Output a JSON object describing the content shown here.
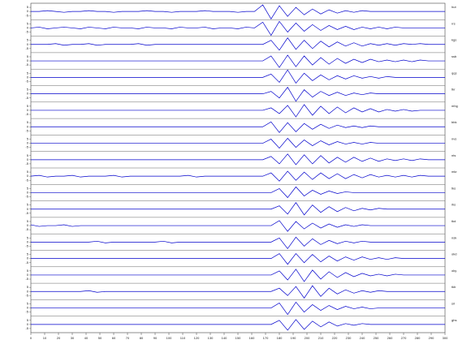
{
  "chart_data": {
    "type": "seismogram",
    "x": [
      0,
      6,
      12,
      18,
      24,
      30,
      36,
      42,
      48,
      54,
      60,
      66,
      72,
      78,
      84,
      90,
      96,
      102,
      108,
      114,
      120,
      126,
      132,
      138,
      144,
      150,
      156,
      162,
      168,
      174,
      180,
      186,
      192,
      198,
      204,
      210,
      216,
      222,
      228,
      234,
      240,
      246,
      252,
      258,
      264,
      270,
      276,
      282,
      288,
      294,
      300
    ],
    "xlim": [
      0,
      300
    ],
    "xticks": [
      0,
      10,
      20,
      30,
      40,
      50,
      60,
      70,
      80,
      90,
      100,
      110,
      120,
      130,
      140,
      150,
      160,
      170,
      180,
      190,
      200,
      210,
      220,
      230,
      240,
      250,
      260,
      270,
      280,
      290,
      300
    ],
    "ylim": [
      -10,
      10
    ],
    "yticks": [
      -5,
      0,
      5
    ],
    "series": [
      {
        "name": "hut",
        "color": "#0000cc",
        "values": [
          0,
          0,
          1,
          0,
          -1,
          0,
          0,
          1,
          0,
          0,
          -1,
          0,
          0,
          0,
          1,
          0,
          0,
          -1,
          0,
          0,
          0,
          1,
          0,
          0,
          0,
          -1,
          0,
          0,
          8,
          -9,
          7,
          -6,
          5,
          -4,
          3,
          -3,
          2,
          -2,
          1,
          -1,
          1,
          0,
          0,
          0,
          0,
          0,
          0,
          0,
          0,
          0,
          0
        ]
      },
      {
        "name": "rrs",
        "color": "#0000cc",
        "values": [
          0,
          1,
          -1,
          0,
          1,
          0,
          -1,
          1,
          0,
          -1,
          1,
          0,
          0,
          -1,
          1,
          0,
          0,
          -1,
          1,
          0,
          0,
          1,
          -1,
          0,
          0,
          -1,
          1,
          0,
          7,
          -9,
          8,
          -5,
          6,
          -4,
          4,
          -3,
          3,
          -2,
          2,
          -2,
          1,
          -1,
          1,
          -1,
          1,
          0,
          0,
          0,
          0,
          0,
          0
        ]
      },
      {
        "name": "kgs",
        "color": "#0000cc",
        "values": [
          0,
          0,
          0,
          1,
          -1,
          0,
          0,
          1,
          -1,
          0,
          0,
          0,
          0,
          1,
          -1,
          0,
          0,
          0,
          0,
          0,
          0,
          0,
          0,
          0,
          0,
          0,
          0,
          0,
          0,
          5,
          -7,
          8,
          -6,
          5,
          -5,
          4,
          -3,
          3,
          -2,
          2,
          -2,
          1,
          -1,
          1,
          -1,
          1,
          0,
          1,
          0,
          0,
          0
        ]
      },
      {
        "name": "ssb",
        "color": "#0000cc",
        "values": [
          0,
          0,
          0,
          0,
          0,
          0,
          0,
          0,
          0,
          0,
          0,
          0,
          0,
          0,
          0,
          0,
          0,
          0,
          0,
          0,
          0,
          0,
          0,
          0,
          0,
          0,
          0,
          0,
          0,
          6,
          -8,
          7,
          -7,
          6,
          -5,
          4,
          -4,
          3,
          -3,
          2,
          -2,
          2,
          -1,
          1,
          -1,
          1,
          -1,
          1,
          0,
          0,
          0
        ]
      },
      {
        "name": "qqs",
        "color": "#0000cc",
        "values": [
          0,
          0,
          0,
          0,
          0,
          0,
          0,
          0,
          0,
          0,
          0,
          0,
          0,
          0,
          0,
          0,
          0,
          0,
          0,
          0,
          0,
          0,
          0,
          0,
          0,
          0,
          0,
          0,
          0,
          4,
          -6,
          9,
          -7,
          5,
          -4,
          3,
          -3,
          2,
          -2,
          2,
          -1,
          1,
          -1,
          1,
          0,
          0,
          0,
          0,
          0,
          0,
          0
        ]
      },
      {
        "name": "tkr",
        "color": "#0000cc",
        "values": [
          0,
          0,
          0,
          0,
          0,
          0,
          0,
          0,
          0,
          0,
          0,
          0,
          0,
          0,
          0,
          0,
          0,
          0,
          0,
          0,
          0,
          0,
          0,
          0,
          0,
          0,
          0,
          0,
          0,
          3,
          -5,
          8,
          -9,
          5,
          -4,
          3,
          -2,
          2,
          -2,
          1,
          -1,
          1,
          0,
          0,
          0,
          0,
          0,
          0,
          0,
          0,
          0
        ]
      },
      {
        "name": "mhg",
        "color": "#0000cc",
        "values": [
          0,
          0,
          0,
          0,
          0,
          0,
          0,
          0,
          0,
          0,
          0,
          0,
          0,
          0,
          0,
          0,
          0,
          0,
          0,
          0,
          0,
          0,
          0,
          0,
          0,
          0,
          0,
          0,
          0,
          3,
          -4,
          6,
          -8,
          7,
          -6,
          5,
          -4,
          4,
          -3,
          3,
          -2,
          2,
          -2,
          1,
          -1,
          1,
          -1,
          0,
          0,
          0,
          0
        ]
      },
      {
        "name": "bbk",
        "color": "#0000cc",
        "values": [
          0,
          0,
          0,
          0,
          0,
          0,
          0,
          0,
          0,
          0,
          0,
          0,
          0,
          0,
          0,
          0,
          0,
          0,
          0,
          0,
          0,
          0,
          0,
          0,
          0,
          0,
          0,
          0,
          0,
          6,
          -7,
          5,
          -6,
          4,
          -3,
          3,
          -2,
          2,
          -1,
          1,
          -1,
          1,
          0,
          0,
          0,
          0,
          0,
          0,
          0,
          0,
          0
        ]
      },
      {
        "name": "nvs",
        "color": "#0000cc",
        "values": [
          0,
          0,
          0,
          0,
          0,
          0,
          0,
          0,
          0,
          0,
          0,
          0,
          0,
          0,
          0,
          0,
          0,
          0,
          0,
          0,
          0,
          0,
          0,
          0,
          0,
          0,
          0,
          0,
          0,
          5,
          -6,
          6,
          -5,
          4,
          -3,
          3,
          -2,
          2,
          -1,
          1,
          -1,
          1,
          0,
          0,
          0,
          0,
          0,
          0,
          0,
          0,
          0
        ]
      },
      {
        "name": "nts",
        "color": "#0000cc",
        "values": [
          0,
          0,
          0,
          0,
          0,
          0,
          0,
          0,
          0,
          0,
          0,
          0,
          0,
          0,
          0,
          0,
          0,
          0,
          0,
          0,
          0,
          0,
          0,
          0,
          0,
          0,
          0,
          0,
          0,
          4,
          -5,
          7,
          -6,
          6,
          -5,
          5,
          -4,
          3,
          -3,
          3,
          -2,
          2,
          -2,
          1,
          -1,
          1,
          -1,
          1,
          0,
          0,
          0
        ]
      },
      {
        "name": "mkr",
        "color": "#0000cc",
        "values": [
          0,
          1,
          -1,
          0,
          0,
          1,
          -1,
          0,
          0,
          0,
          1,
          -1,
          0,
          0,
          0,
          0,
          0,
          0,
          0,
          1,
          -1,
          0,
          0,
          0,
          0,
          0,
          0,
          0,
          0,
          4,
          -6,
          6,
          -5,
          5,
          -4,
          4,
          -3,
          3,
          -3,
          2,
          -2,
          2,
          -1,
          1,
          -1,
          1,
          -1,
          1,
          0,
          0,
          0
        ]
      },
      {
        "name": "tks",
        "color": "#0000cc",
        "values": [
          0,
          0,
          0,
          0,
          0,
          0,
          0,
          0,
          0,
          0,
          0,
          0,
          0,
          0,
          0,
          0,
          0,
          0,
          0,
          0,
          0,
          0,
          0,
          0,
          0,
          0,
          0,
          0,
          0,
          0,
          5,
          -6,
          7,
          -4,
          3,
          -2,
          2,
          -1,
          1,
          0,
          0,
          0,
          0,
          0,
          0,
          0,
          0,
          0,
          0,
          0,
          0
        ]
      },
      {
        "name": "ihs",
        "color": "#0000cc",
        "values": [
          0,
          0,
          0,
          0,
          0,
          0,
          0,
          0,
          0,
          0,
          0,
          0,
          0,
          0,
          0,
          0,
          0,
          0,
          0,
          0,
          0,
          0,
          0,
          0,
          0,
          0,
          0,
          0,
          0,
          0,
          4,
          -6,
          8,
          -7,
          5,
          -4,
          3,
          -3,
          2,
          -2,
          1,
          -1,
          1,
          0,
          0,
          0,
          0,
          0,
          0,
          0,
          0
        ]
      },
      {
        "name": "tkd",
        "color": "#0000cc",
        "values": [
          1,
          -1,
          0,
          0,
          1,
          -1,
          0,
          0,
          0,
          0,
          0,
          0,
          0,
          0,
          0,
          0,
          0,
          0,
          0,
          0,
          0,
          0,
          0,
          0,
          0,
          0,
          0,
          0,
          0,
          0,
          6,
          -7,
          5,
          -4,
          3,
          -3,
          2,
          -2,
          1,
          -1,
          1,
          0,
          0,
          0,
          0,
          0,
          0,
          0,
          0,
          0,
          0
        ]
      },
      {
        "name": "nsk",
        "color": "#0000cc",
        "values": [
          0,
          0,
          0,
          0,
          0,
          0,
          0,
          0,
          1,
          -1,
          0,
          0,
          0,
          0,
          0,
          0,
          1,
          -1,
          0,
          0,
          0,
          0,
          0,
          0,
          0,
          0,
          0,
          0,
          0,
          0,
          5,
          -8,
          6,
          -5,
          4,
          -3,
          2,
          -2,
          1,
          -1,
          1,
          0,
          0,
          0,
          0,
          0,
          0,
          0,
          0,
          0,
          0
        ]
      },
      {
        "name": "okd",
        "color": "#0000cc",
        "values": [
          0,
          0,
          0,
          0,
          0,
          0,
          0,
          0,
          0,
          0,
          0,
          0,
          0,
          0,
          0,
          0,
          0,
          0,
          0,
          0,
          0,
          0,
          0,
          0,
          0,
          0,
          0,
          0,
          0,
          0,
          6,
          -7,
          6,
          -5,
          5,
          -4,
          3,
          -3,
          2,
          -2,
          2,
          -1,
          1,
          -1,
          1,
          0,
          0,
          0,
          0,
          0,
          0
        ]
      },
      {
        "name": "oky",
        "color": "#0000cc",
        "values": [
          0,
          0,
          0,
          0,
          0,
          0,
          0,
          0,
          0,
          0,
          0,
          0,
          0,
          0,
          0,
          0,
          0,
          0,
          0,
          0,
          0,
          0,
          0,
          0,
          0,
          0,
          0,
          0,
          0,
          0,
          5,
          -6,
          7,
          -8,
          6,
          -5,
          4,
          -3,
          3,
          -2,
          2,
          -1,
          1,
          -1,
          1,
          0,
          0,
          0,
          0,
          0,
          0
        ]
      },
      {
        "name": "tkb",
        "color": "#0000cc",
        "values": [
          0,
          0,
          0,
          0,
          0,
          0,
          0,
          1,
          -1,
          0,
          0,
          0,
          0,
          0,
          0,
          0,
          0,
          0,
          0,
          0,
          0,
          0,
          0,
          0,
          0,
          0,
          0,
          0,
          0,
          0,
          4,
          -5,
          6,
          -8,
          7,
          -6,
          4,
          -3,
          2,
          -2,
          1,
          -1,
          1,
          0,
          0,
          0,
          0,
          0,
          0,
          0,
          0
        ]
      },
      {
        "name": "sri",
        "color": "#0000cc",
        "values": [
          0,
          0,
          0,
          0,
          0,
          0,
          0,
          0,
          0,
          0,
          0,
          0,
          0,
          0,
          0,
          0,
          0,
          0,
          0,
          0,
          0,
          0,
          0,
          0,
          0,
          0,
          0,
          0,
          0,
          0,
          6,
          -8,
          7,
          -5,
          4,
          -3,
          3,
          -2,
          2,
          -1,
          1,
          -1,
          0,
          0,
          0,
          0,
          0,
          0,
          0,
          0,
          0
        ]
      },
      {
        "name": "ghs",
        "color": "#0000cc",
        "values": [
          0,
          0,
          0,
          0,
          0,
          0,
          0,
          0,
          0,
          0,
          0,
          0,
          0,
          0,
          0,
          0,
          0,
          0,
          0,
          0,
          0,
          0,
          0,
          0,
          0,
          0,
          0,
          0,
          0,
          0,
          5,
          -7,
          6,
          -6,
          4,
          -3,
          3,
          -2,
          1,
          -1,
          1,
          0,
          0,
          0,
          0,
          0,
          0,
          0,
          0,
          0,
          0
        ]
      }
    ]
  }
}
